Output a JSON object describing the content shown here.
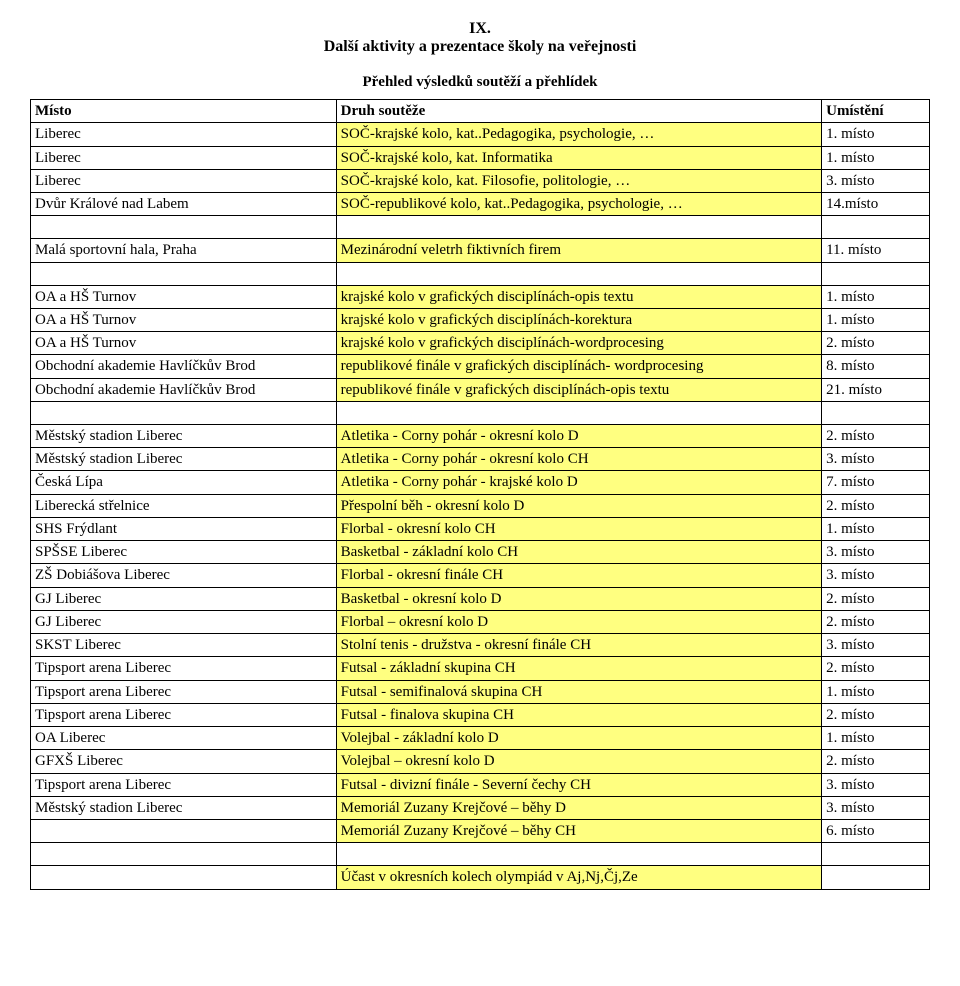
{
  "header": {
    "num": "IX.",
    "title": "Další aktivity a prezentace školy na veřejnosti",
    "subtitle": "Přehled výsledků soutěží a přehlídek"
  },
  "table_header": {
    "col1": "Místo",
    "col2": "Druh soutěže",
    "col3": "Umístění"
  },
  "section1": [
    {
      "c1": "Liberec",
      "c2": "SOČ-krajské kolo, kat..Pedagogika, psychologie, …",
      "c3": "1. místo"
    },
    {
      "c1": "Liberec",
      "c2": "SOČ-krajské kolo, kat. Informatika",
      "c3": "1. místo"
    },
    {
      "c1": "Liberec",
      "c2": "SOČ-krajské kolo, kat. Filosofie, politologie, …",
      "c3": "3. místo"
    },
    {
      "c1": "Dvůr Králové nad Labem",
      "c2": "SOČ-republikové kolo, kat..Pedagogika, psychologie, …",
      "c3": "14.místo"
    }
  ],
  "section2": [
    {
      "c1": "Malá sportovní hala, Praha",
      "c2": "Mezinárodní veletrh fiktivních firem",
      "c3": "11. místo"
    }
  ],
  "section3": [
    {
      "c1": "OA a HŠ Turnov",
      "c2": "krajské kolo v grafických disciplínách-opis textu",
      "c3": "1. místo"
    },
    {
      "c1": "OA a HŠ Turnov",
      "c2": "krajské kolo v grafických disciplínách-korektura",
      "c3": "1. místo"
    },
    {
      "c1": "OA a HŠ Turnov",
      "c2": "krajské kolo v grafických disciplínách-wordprocesing",
      "c3": "2. místo"
    },
    {
      "c1": "Obchodní akademie Havlíčkův Brod",
      "c2": "republikové finále v grafických disciplínách- wordprocesing",
      "c3": "8. místo"
    },
    {
      "c1": "Obchodní akademie Havlíčkův Brod",
      "c2": "republikové finále v grafických disciplínách-opis textu",
      "c3": "21. místo"
    }
  ],
  "section4": [
    {
      "c1": "Městský stadion Liberec",
      "c2": "Atletika - Corny pohár - okresní kolo D",
      "c3": "2. místo"
    },
    {
      "c1": "Městský stadion Liberec",
      "c2": "Atletika - Corny pohár - okresní kolo CH",
      "c3": "3. místo"
    },
    {
      "c1": "Česká Lípa",
      "c2": "Atletika - Corny pohár - krajské kolo D",
      "c3": "7. místo"
    },
    {
      "c1": "Liberecká střelnice",
      "c2": "Přespolní běh - okresní kolo D",
      "c3": "2. místo"
    },
    {
      "c1": "SHS Frýdlant",
      "c2": "Florbal - okresní kolo CH",
      "c3": "1. místo"
    },
    {
      "c1": "SPŠSE Liberec",
      "c2": "Basketbal - základní kolo CH",
      "c3": "3. místo"
    },
    {
      "c1": "ZŠ Dobiášova Liberec",
      "c2": "Florbal - okresní finále CH",
      "c3": "3. místo"
    },
    {
      "c1": "GJ Liberec",
      "c2": "Basketbal - okresní kolo D",
      "c3": "2. místo"
    },
    {
      "c1": "GJ Liberec",
      "c2": "Florbal – okresní kolo D",
      "c3": "2. místo"
    },
    {
      "c1": "SKST Liberec",
      "c2": "Stolní tenis - družstva - okresní finále CH",
      "c3": "3. místo"
    },
    {
      "c1": "Tipsport arena Liberec",
      "c2": "Futsal - základní skupina CH",
      "c3": "2. místo"
    },
    {
      "c1": "Tipsport arena Liberec",
      "c2": "Futsal - semifinalová skupina CH",
      "c3": "1. místo"
    },
    {
      "c1": "Tipsport arena Liberec",
      "c2": "Futsal - finalova skupina CH",
      "c3": "2. místo"
    },
    {
      "c1": "OA Liberec",
      "c2": "Volejbal - základní kolo D",
      "c3": "1. místo"
    },
    {
      "c1": "GFXŠ Liberec",
      "c2": "Volejbal – okresní kolo D",
      "c3": "2. místo"
    },
    {
      "c1": "Tipsport arena Liberec",
      "c2": "Futsal - divizní finále - Severní čechy CH",
      "c3": "3. místo"
    },
    {
      "c1": "Městský stadion Liberec",
      "c2": "Memoriál Zuzany Krejčové – běhy D",
      "c3": "3. místo"
    },
    {
      "c1": "",
      "c2": "Memoriál Zuzany Krejčové – běhy CH",
      "c3": "6. místo"
    }
  ],
  "footer_row": {
    "c1": "",
    "c2": "Účast v okresních kolech olympiád v Aj,Nj,Čj,Ze",
    "c3": ""
  }
}
